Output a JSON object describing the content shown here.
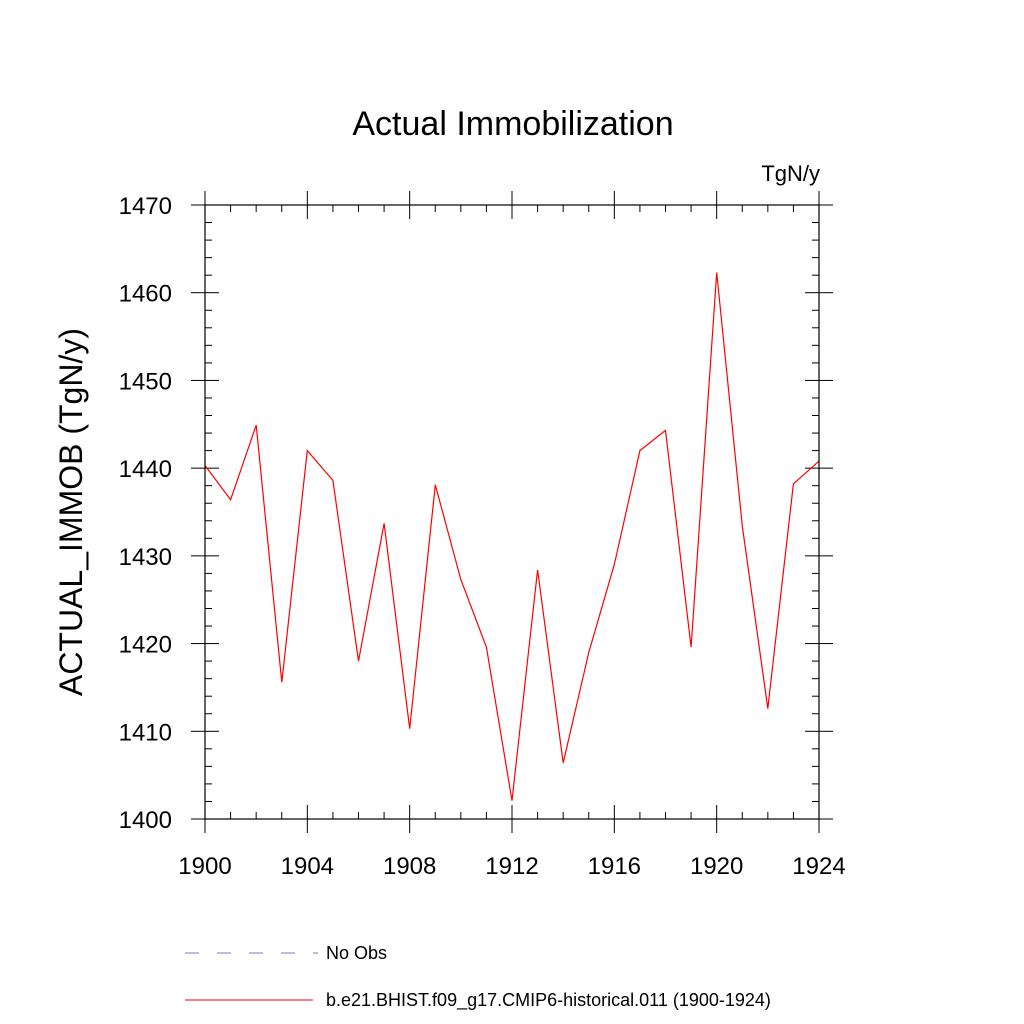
{
  "chart_data": {
    "type": "line",
    "title": "Actual Immobilization",
    "units_label": "TgN/y",
    "xlabel": "",
    "ylabel": "ACTUAL_IMMOB  (TgN/y)",
    "xlim": [
      1900,
      1924
    ],
    "ylim": [
      1400,
      1470
    ],
    "x_ticks": [
      1900,
      1904,
      1908,
      1912,
      1916,
      1920,
      1924
    ],
    "y_ticks": [
      1400,
      1410,
      1420,
      1430,
      1440,
      1450,
      1460,
      1470
    ],
    "grid": false,
    "legend_position": "bottom",
    "x": [
      1900,
      1901,
      1902,
      1903,
      1904,
      1905,
      1906,
      1907,
      1908,
      1909,
      1910,
      1911,
      1912,
      1913,
      1914,
      1915,
      1916,
      1917,
      1918,
      1919,
      1920,
      1921,
      1922,
      1923,
      1924
    ],
    "series": [
      {
        "name": "b.e21.BHIST.f09_g17.CMIP6-historical.011 (1900-1924)",
        "color": "#ff0000",
        "values": [
          1440.3,
          1436.4,
          1444.9,
          1415.6,
          1442.0,
          1438.6,
          1418.0,
          1433.7,
          1410.3,
          1438.1,
          1427.3,
          1419.6,
          1402.1,
          1428.4,
          1406.4,
          1419.0,
          1429.0,
          1442.0,
          1444.3,
          1419.6,
          1462.3,
          1433.4,
          1412.6,
          1438.2,
          1440.8
        ]
      }
    ],
    "legend": [
      {
        "label": "No Obs",
        "style": "dashed",
        "color": "#7a7ad6"
      },
      {
        "label": "b.e21.BHIST.f09_g17.CMIP6-historical.011 (1900-1924)",
        "style": "solid",
        "color": "#ff0000"
      }
    ]
  }
}
